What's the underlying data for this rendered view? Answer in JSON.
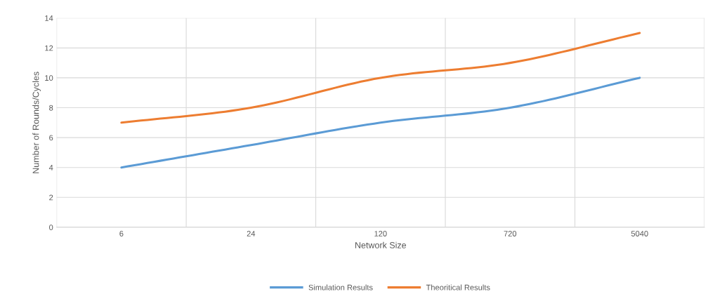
{
  "chart_data": {
    "type": "line",
    "xlabel": "Network Size",
    "ylabel": "Number of Rounds/Cycles",
    "categories": [
      "6",
      "24",
      "120",
      "720",
      "5040"
    ],
    "series": [
      {
        "name": "Simulation Results",
        "color": "#5b9bd5",
        "values": [
          4,
          5.5,
          7,
          8,
          10
        ]
      },
      {
        "name": "Theoritical Results",
        "color": "#ed7d31",
        "values": [
          7,
          8,
          10,
          11,
          13
        ]
      }
    ],
    "ylim": [
      0,
      14
    ],
    "yticks": [
      0,
      2,
      4,
      6,
      8,
      10,
      12,
      14
    ],
    "grid": true,
    "legend": "bottom",
    "marker": "none",
    "line_style": "solid"
  }
}
